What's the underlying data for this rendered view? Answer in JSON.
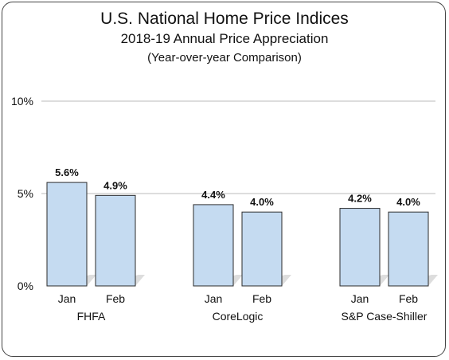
{
  "header": {
    "title": "U.S. National Home Price Indices",
    "subtitle": "2018-19 Annual Price Appreciation",
    "subtitle2": "(Year-over-year Comparison)"
  },
  "colors": {
    "bar_fill": "#c5dbf1",
    "bar_stroke": "#2b2b2b",
    "grid": "#bbbbbb",
    "shadow": "#d9d9d9"
  },
  "chart_data": {
    "type": "bar",
    "title": "U.S. National Home Price Indices",
    "subtitle": "2018-19 Annual Price Appreciation (Year-over-year Comparison)",
    "xlabel": "",
    "ylabel": "",
    "ylim": [
      0,
      10
    ],
    "yticks": [
      {
        "value": 0,
        "label": "0%"
      },
      {
        "value": 5,
        "label": "5%"
      },
      {
        "value": 10,
        "label": "10%"
      }
    ],
    "grid": true,
    "legend": "none",
    "groups": [
      {
        "name": "FHFA",
        "bars": [
          {
            "label": "Jan",
            "value": 5.6,
            "value_label": "5.6%"
          },
          {
            "label": "Feb",
            "value": 4.9,
            "value_label": "4.9%"
          }
        ]
      },
      {
        "name": "CoreLogic",
        "bars": [
          {
            "label": "Jan",
            "value": 4.4,
            "value_label": "4.4%"
          },
          {
            "label": "Feb",
            "value": 4.0,
            "value_label": "4.0%"
          }
        ]
      },
      {
        "name": "S&P Case-Shiller",
        "bars": [
          {
            "label": "Jan",
            "value": 4.2,
            "value_label": "4.2%"
          },
          {
            "label": "Feb",
            "value": 4.0,
            "value_label": "4.0%"
          }
        ]
      }
    ]
  }
}
